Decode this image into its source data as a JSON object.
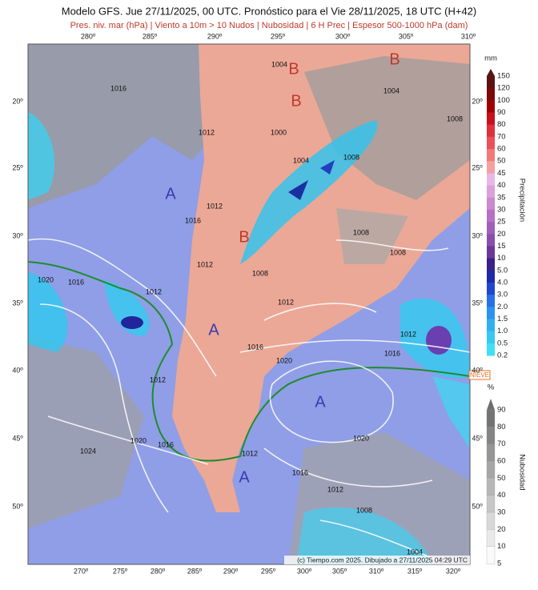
{
  "header": {
    "title": "Modelo GFS. Jue 27/11/2025, 00 UTC. Pronóstico para el Vie 28/11/2025, 18 UTC (H+42)",
    "subtitle": "Pres. niv. mar (hPa) | Viento a 10m > 10 Nudos | Nubosidad | 6 H Prec | Espesor 500-1000 hPa (dam)"
  },
  "map": {
    "top_lon_labels": [
      "280º",
      "285º",
      "290º",
      "295º",
      "300º",
      "305º",
      "310º"
    ],
    "bottom_lon_labels": [
      "270º",
      "275º",
      "280º",
      "285º",
      "290º",
      "295º",
      "300º",
      "305º",
      "310º",
      "315º",
      "320º"
    ],
    "left_lat_labels": [
      "20º",
      "25º",
      "30º",
      "35º",
      "40º",
      "45º",
      "50º"
    ],
    "right_lat_labels": [
      "20º",
      "25º",
      "30º",
      "35º",
      "40º",
      "45º",
      "50º"
    ],
    "isobar_labels": [
      "1016",
      "1004",
      "1004",
      "1008",
      "1000",
      "1012",
      "1004",
      "1008",
      "1012",
      "1016",
      "1008",
      "1008",
      "1012",
      "1008",
      "1020",
      "1016",
      "1012",
      "1012",
      "1012",
      "1016",
      "1016",
      "1020",
      "1012",
      "1020",
      "1016",
      "1024",
      "1012",
      "1020",
      "1016",
      "1012",
      "1008",
      "1004"
    ],
    "high_low_labels": [
      "A",
      "A",
      "A",
      "A",
      "B",
      "B",
      "B",
      "B"
    ],
    "snow_label": "NIEVE",
    "credit": "(c) Tiempo.com 2025. Dibujado a 27/11/2025 04:29 UTC"
  },
  "precip_legend": {
    "unit": "mm",
    "title": "Precipitación",
    "labels": [
      "150",
      "120",
      "100",
      "90",
      "80",
      "70",
      "60",
      "50",
      "45",
      "40",
      "35",
      "30",
      "25",
      "20",
      "15",
      "10",
      "5.0",
      "4.0",
      "3.0",
      "2.0",
      "1.5",
      "1.0",
      "0.5",
      "0.2"
    ]
  },
  "cloud_legend": {
    "unit": "%",
    "title": "Nubosidad",
    "labels": [
      "90",
      "80",
      "70",
      "60",
      "50",
      "40",
      "30",
      "20",
      "10",
      "5"
    ]
  }
}
